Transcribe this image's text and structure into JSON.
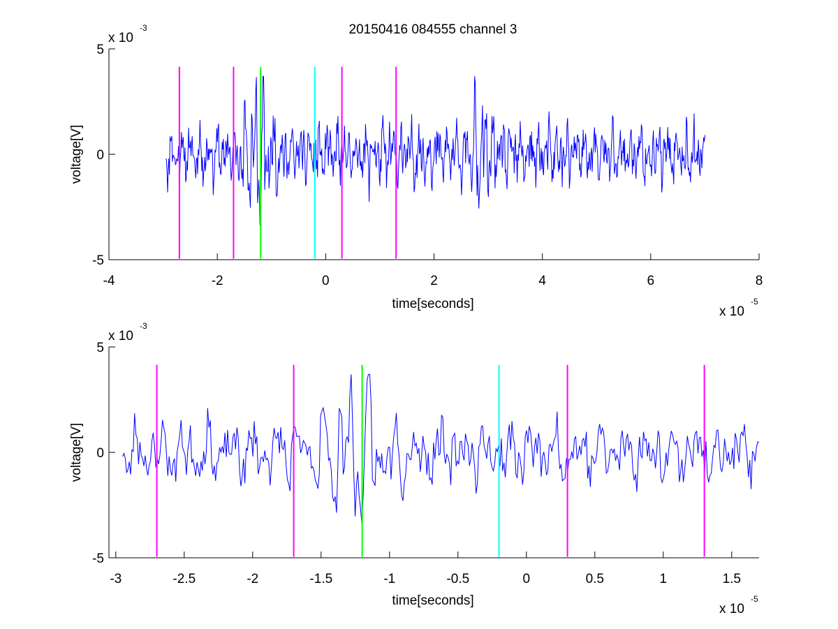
{
  "figure_title": "20150416 084555 channel 3",
  "chart_data": [
    {
      "type": "line",
      "title": "20150416 084555 channel 3",
      "xlabel": "time[seconds]",
      "ylabel": "voltage[V]",
      "x_exponent_label": "x 10",
      "x_exponent": "-5",
      "y_exponent_label": "x 10",
      "y_exponent": "-3",
      "xlim": [
        -4,
        8
      ],
      "ylim": [
        -5,
        5
      ],
      "xticks": [
        -4,
        -2,
        0,
        2,
        4,
        6,
        8
      ],
      "xtick_labels": [
        "-4",
        "-2",
        "0",
        "2",
        "4",
        "6",
        "8"
      ],
      "yticks": [
        -5,
        0,
        5
      ],
      "ytick_labels": [
        "-5",
        "0",
        "5"
      ],
      "grid": false,
      "series": [
        {
          "color": "#0000ff",
          "x_range": [
            -2.95,
            7.0
          ],
          "samples": 900,
          "seed": 11,
          "noise_amplitude": 1.0,
          "y_range_observed": [
            -4.4,
            3.7
          ]
        }
      ],
      "markers": [
        {
          "x": -2.7,
          "color": "#ff00ff",
          "y_range": [
            -4.95,
            4.15
          ]
        },
        {
          "x": -1.7,
          "color": "#ff00ff",
          "y_range": [
            -4.95,
            4.15
          ]
        },
        {
          "x": -1.2,
          "color": "#00ff00",
          "y_range": [
            -4.95,
            4.15
          ]
        },
        {
          "x": -0.2,
          "color": "#00ffff",
          "y_range": [
            -4.95,
            4.15
          ]
        },
        {
          "x": 0.3,
          "color": "#ff00ff",
          "y_range": [
            -4.95,
            4.15
          ]
        },
        {
          "x": 1.3,
          "color": "#ff00ff",
          "y_range": [
            -4.95,
            4.15
          ]
        }
      ]
    },
    {
      "type": "line",
      "title": "",
      "xlabel": "time[seconds]",
      "ylabel": "voltage[V]",
      "x_exponent_label": "x 10",
      "x_exponent": "-5",
      "y_exponent_label": "x 10",
      "y_exponent": "-3",
      "xlim": [
        -3.05,
        1.7
      ],
      "ylim": [
        -5,
        5
      ],
      "xticks": [
        -3,
        -2.5,
        -2,
        -1.5,
        -1,
        -0.5,
        0,
        0.5,
        1,
        1.5
      ],
      "xtick_labels": [
        "-3",
        "-2.5",
        "-2",
        "-1.5",
        "-1",
        "-0.5",
        "0",
        "0.5",
        "1",
        "1.5"
      ],
      "yticks": [
        -5,
        0,
        5
      ],
      "ytick_labels": [
        "-5",
        "0",
        "5"
      ],
      "grid": false,
      "series": [
        {
          "color": "#0000ff",
          "x_range": [
            -2.95,
            1.7
          ],
          "samples": 480,
          "seed": 23,
          "noise_amplitude": 1.0,
          "y_range_observed": [
            -4.4,
            3.7
          ]
        }
      ],
      "markers": [
        {
          "x": -2.7,
          "color": "#ff00ff",
          "y_range": [
            -4.95,
            4.15
          ]
        },
        {
          "x": -1.7,
          "color": "#ff00ff",
          "y_range": [
            -4.95,
            4.15
          ]
        },
        {
          "x": -1.2,
          "color": "#00ff00",
          "y_range": [
            -4.95,
            4.15
          ]
        },
        {
          "x": -0.2,
          "color": "#00ffff",
          "y_range": [
            -4.95,
            4.15
          ]
        },
        {
          "x": 0.3,
          "color": "#ff00ff",
          "y_range": [
            -4.95,
            4.15
          ]
        },
        {
          "x": 1.3,
          "color": "#ff00ff",
          "y_range": [
            -4.95,
            4.15
          ]
        }
      ]
    }
  ]
}
